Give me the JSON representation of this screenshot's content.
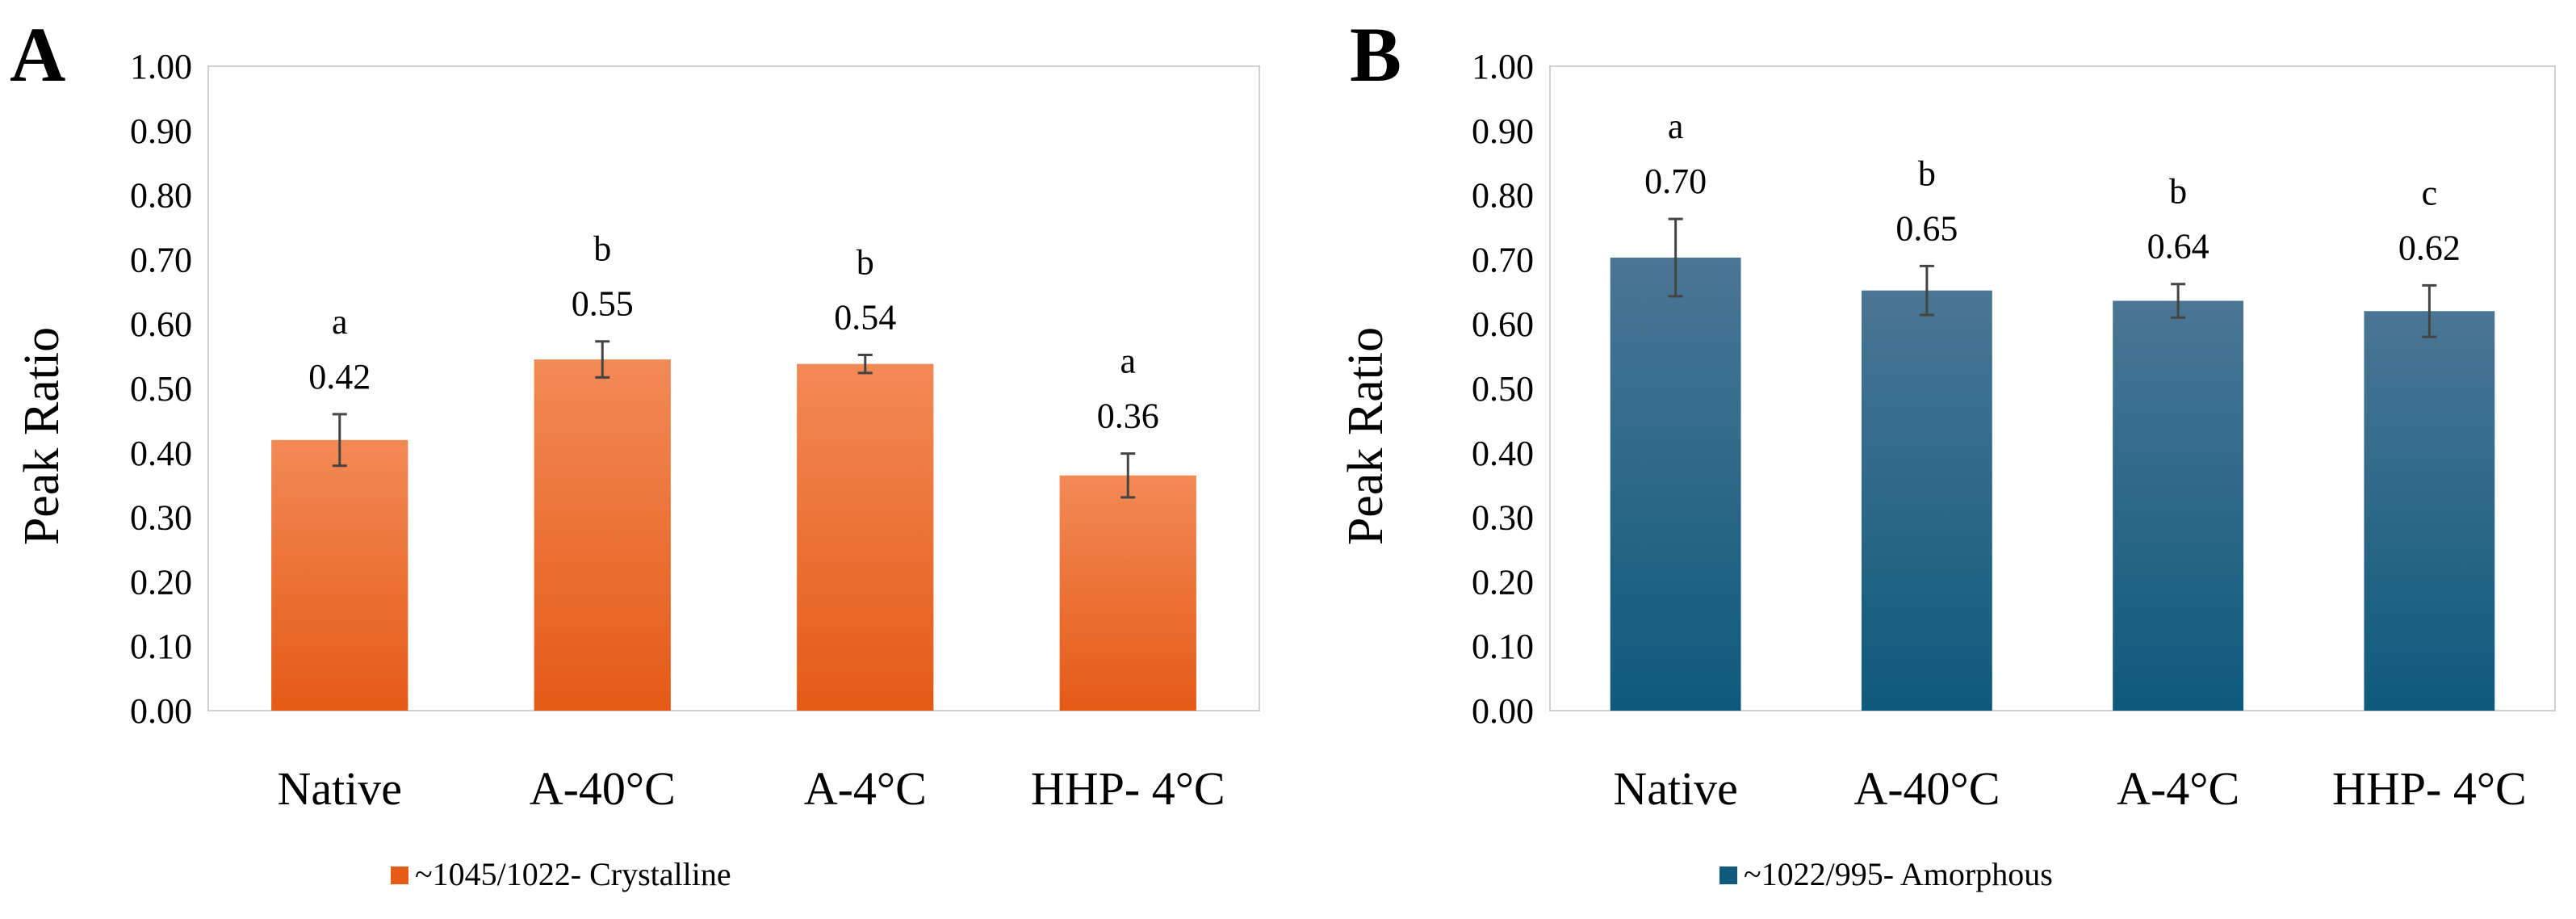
{
  "chart_data": [
    {
      "panel_label": "A",
      "type": "bar",
      "categories": [
        "Native",
        "A-40°C",
        "A-4°C",
        "HHP- 4°C"
      ],
      "values": [
        0.42,
        0.545,
        0.538,
        0.365
      ],
      "value_labels": [
        "0.42",
        "0.55",
        "0.54",
        "0.36"
      ],
      "errors": [
        0.04,
        0.028,
        0.014,
        0.034
      ],
      "letters": [
        "a",
        "b",
        "b",
        "a"
      ],
      "ylabel": "Peak Ratio",
      "ylim": [
        0,
        1
      ],
      "yticks": [
        "0.00",
        "0.10",
        "0.20",
        "0.30",
        "0.40",
        "0.50",
        "0.60",
        "0.70",
        "0.80",
        "0.90",
        "1.00"
      ],
      "legend": "~1045/1022- Crystalline",
      "legend_position": "bottom-left",
      "grid": false,
      "color_top": "#f28a56",
      "color_bottom": "#e45a16"
    },
    {
      "panel_label": "B",
      "type": "bar",
      "categories": [
        "Native",
        "A-40°C",
        "A-4°C",
        "HHP- 4°C"
      ],
      "values": [
        0.703,
        0.652,
        0.636,
        0.62
      ],
      "value_labels": [
        "0.70",
        "0.65",
        "0.64",
        "0.62"
      ],
      "errors": [
        0.06,
        0.038,
        0.026,
        0.04
      ],
      "letters": [
        "a",
        "b",
        "b",
        "c"
      ],
      "ylabel": "Peak Ratio",
      "ylim": [
        0,
        1
      ],
      "yticks": [
        "0.00",
        "0.10",
        "0.20",
        "0.30",
        "0.40",
        "0.50",
        "0.60",
        "0.70",
        "0.80",
        "0.90",
        "1.00"
      ],
      "legend": "~1022/995- Amorphous",
      "legend_position": "bottom-left",
      "grid": false,
      "color_top": "#4a7694",
      "color_bottom": "#0e5a7c"
    }
  ]
}
